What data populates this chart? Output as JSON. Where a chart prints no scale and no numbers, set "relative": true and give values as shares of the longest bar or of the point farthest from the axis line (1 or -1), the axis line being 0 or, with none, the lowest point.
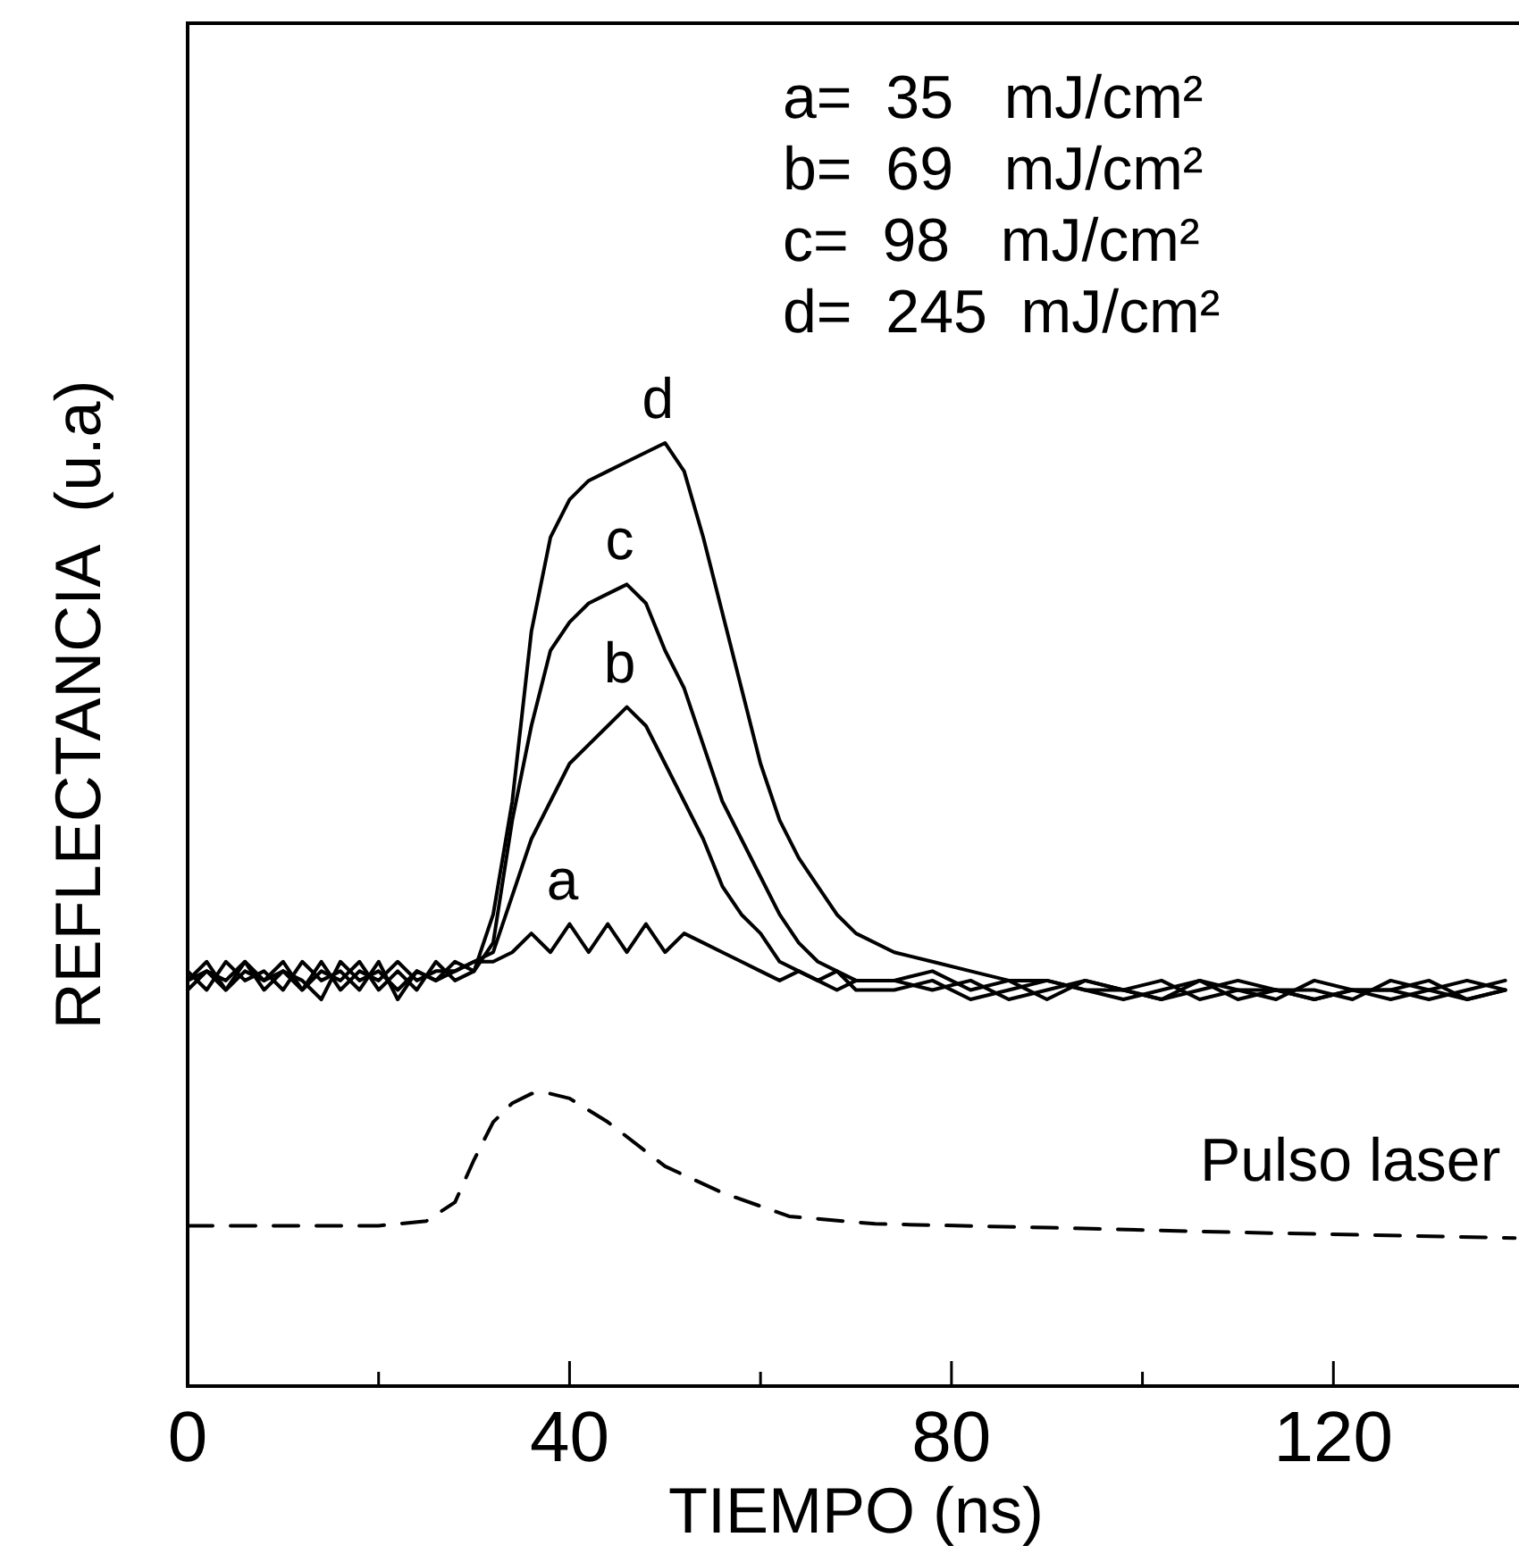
{
  "chart_data": {
    "type": "line",
    "relative": true,
    "xlabel": "TIEMPO  (ns)",
    "ylabel": "REFLECTANCIA  (u.a)",
    "xlim": [
      0,
      140
    ],
    "xticks": [
      0,
      {
        "value": 20,
        "label": null
      },
      40,
      {
        "value": 60,
        "label": null
      },
      80,
      {
        "value": 100,
        "label": null
      },
      120,
      {
        "value": 140,
        "label": null
      }
    ],
    "annotations": [
      "a=  35   mJ/cm²",
      "b=  69   mJ/cm²",
      "c=  98   mJ/cm²",
      "d=  245  mJ/cm²"
    ],
    "x": [
      0,
      2,
      4,
      6,
      8,
      10,
      12,
      14,
      16,
      18,
      20,
      22,
      24,
      26,
      28,
      30,
      32,
      34,
      36,
      38,
      40,
      42,
      44,
      46,
      48,
      50,
      52,
      54,
      56,
      58,
      60,
      62,
      64,
      66,
      68,
      70,
      74,
      78,
      82,
      86,
      90,
      94,
      98,
      102,
      106,
      110,
      114,
      118,
      122,
      126,
      130,
      134,
      138
    ],
    "series": [
      {
        "name": "a",
        "color": "#000000",
        "values": [
          0.43,
          0.44,
          0.42,
          0.45,
          0.43,
          0.44,
          0.42,
          0.45,
          0.42,
          0.44,
          0.43,
          0.45,
          0.43,
          0.44,
          0.44,
          0.45,
          0.45,
          0.46,
          0.48,
          0.46,
          0.49,
          0.46,
          0.49,
          0.46,
          0.49,
          0.46,
          0.48,
          0.47,
          0.46,
          0.45,
          0.44,
          0.43,
          0.44,
          0.43,
          0.42,
          0.43,
          0.43,
          0.42,
          0.43,
          0.41,
          0.42,
          0.43,
          0.42,
          0.41,
          0.42,
          0.43,
          0.42,
          0.41,
          0.42,
          0.42,
          0.43,
          0.41,
          0.42
        ]
      },
      {
        "name": "b",
        "color": "#000000",
        "values": [
          0.42,
          0.44,
          0.43,
          0.45,
          0.42,
          0.44,
          0.43,
          0.41,
          0.45,
          0.43,
          0.44,
          0.42,
          0.44,
          0.43,
          0.44,
          0.45,
          0.46,
          0.52,
          0.58,
          0.62,
          0.66,
          0.68,
          0.7,
          0.72,
          0.7,
          0.66,
          0.62,
          0.58,
          0.53,
          0.5,
          0.48,
          0.45,
          0.44,
          0.43,
          0.44,
          0.42,
          0.42,
          0.43,
          0.41,
          0.42,
          0.43,
          0.42,
          0.41,
          0.42,
          0.43,
          0.41,
          0.42,
          0.42,
          0.41,
          0.43,
          0.42,
          0.41,
          0.42
        ]
      },
      {
        "name": "c",
        "color": "#000000",
        "values": [
          0.44,
          0.42,
          0.45,
          0.43,
          0.44,
          0.42,
          0.45,
          0.43,
          0.44,
          0.42,
          0.45,
          0.41,
          0.44,
          0.43,
          0.45,
          0.44,
          0.47,
          0.6,
          0.7,
          0.78,
          0.81,
          0.83,
          0.84,
          0.85,
          0.83,
          0.78,
          0.74,
          0.68,
          0.62,
          0.58,
          0.54,
          0.5,
          0.47,
          0.45,
          0.44,
          0.43,
          0.43,
          0.44,
          0.42,
          0.43,
          0.41,
          0.43,
          0.42,
          0.41,
          0.43,
          0.42,
          0.41,
          0.43,
          0.42,
          0.42,
          0.41,
          0.42,
          0.43
        ]
      },
      {
        "name": "d",
        "color": "#000000",
        "values": [
          0.43,
          0.45,
          0.42,
          0.44,
          0.43,
          0.45,
          0.42,
          0.44,
          0.43,
          0.45,
          0.42,
          0.44,
          0.42,
          0.45,
          0.43,
          0.44,
          0.5,
          0.62,
          0.8,
          0.9,
          0.94,
          0.96,
          0.97,
          0.98,
          0.99,
          1.0,
          0.97,
          0.9,
          0.82,
          0.74,
          0.66,
          0.6,
          0.56,
          0.53,
          0.5,
          0.48,
          0.46,
          0.45,
          0.44,
          0.43,
          0.43,
          0.42,
          0.42,
          0.43,
          0.41,
          0.42,
          0.42,
          0.41,
          0.42,
          0.41,
          0.42,
          0.43,
          0.42
        ]
      },
      {
        "name": "Pulso laser",
        "color": "#000000",
        "line_style": "dashed",
        "x": [
          0,
          10,
          20,
          25,
          28,
          30,
          32,
          34,
          36,
          38,
          40,
          44,
          50,
          56,
          63,
          72,
          90,
          110,
          139
        ],
        "values": [
          0.17,
          0.17,
          0.17,
          0.175,
          0.195,
          0.24,
          0.28,
          0.3,
          0.31,
          0.31,
          0.305,
          0.28,
          0.233,
          0.205,
          0.18,
          0.172,
          0.168,
          0.163,
          0.157
        ]
      }
    ]
  }
}
